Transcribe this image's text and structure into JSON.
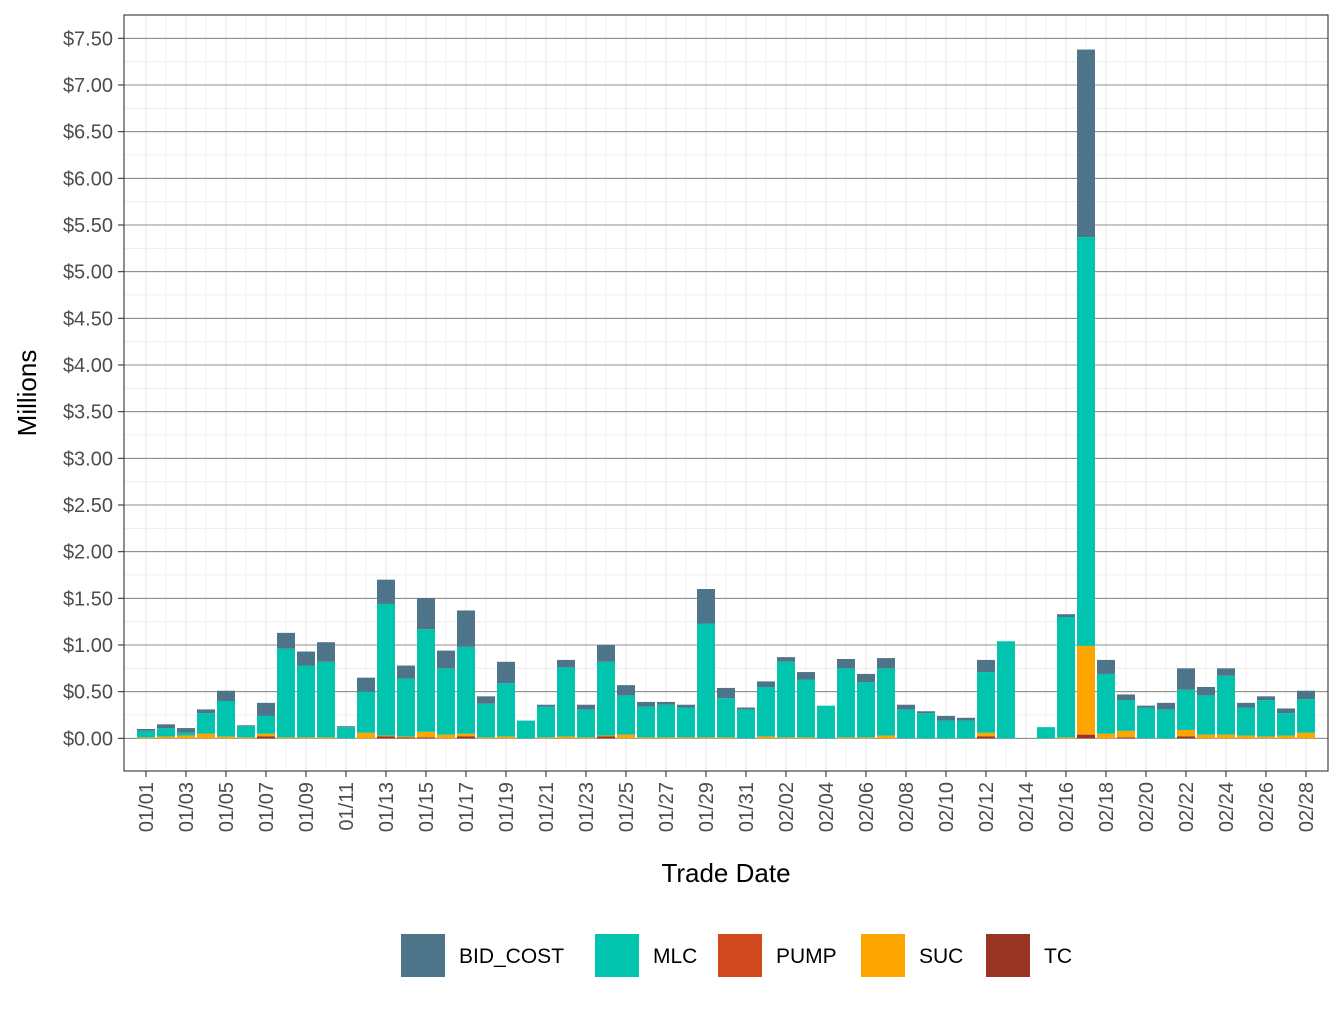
{
  "chart_data": {
    "type": "bar",
    "stacked": true,
    "xlabel": "Trade Date",
    "ylabel": "Millions",
    "ylim": [
      -0.35,
      7.75
    ],
    "y_ticks": [
      0,
      0.5,
      1,
      1.5,
      2,
      2.5,
      3,
      3.5,
      4,
      4.5,
      5,
      5.5,
      6,
      6.5,
      7,
      7.5
    ],
    "y_tick_labels": [
      "$0.00",
      "$0.50",
      "$1.00",
      "$1.50",
      "$2.00",
      "$2.50",
      "$3.00",
      "$3.50",
      "$4.00",
      "$4.50",
      "$5.00",
      "$5.50",
      "$6.00",
      "$6.50",
      "$7.00",
      "$7.50"
    ],
    "grid": true,
    "legend_position": "bottom",
    "x_tick_labels": [
      "01/01",
      "01/03",
      "01/05",
      "01/07",
      "01/09",
      "01/11",
      "01/13",
      "01/15",
      "01/17",
      "01/19",
      "01/21",
      "01/23",
      "01/25",
      "01/27",
      "01/29",
      "01/31",
      "02/02",
      "02/04",
      "02/06",
      "02/08",
      "02/10",
      "02/12",
      "02/14",
      "02/16",
      "02/18",
      "02/20",
      "02/22",
      "02/24",
      "02/26",
      "02/28"
    ],
    "categories": [
      "01/01",
      "01/02",
      "01/03",
      "01/04",
      "01/05",
      "01/06",
      "01/07",
      "01/08",
      "01/09",
      "01/10",
      "01/11",
      "01/12",
      "01/13",
      "01/14",
      "01/15",
      "01/16",
      "01/17",
      "01/18",
      "01/19",
      "01/20",
      "01/21",
      "01/22",
      "01/23",
      "01/24",
      "01/25",
      "01/26",
      "01/27",
      "01/28",
      "01/29",
      "01/30",
      "01/31",
      "02/01",
      "02/02",
      "02/03",
      "02/04",
      "02/05",
      "02/06",
      "02/07",
      "02/08",
      "02/09",
      "02/10",
      "02/11",
      "02/12",
      "02/13",
      "02/14",
      "02/15",
      "02/16",
      "02/17",
      "02/18",
      "02/19",
      "02/20",
      "02/21",
      "02/22",
      "02/23",
      "02/24",
      "02/25",
      "02/26",
      "02/27",
      "02/28"
    ],
    "series": [
      {
        "name": "TC",
        "color": "#993522",
        "values": [
          0,
          0,
          0,
          0,
          0,
          0,
          0.02,
          0,
          0,
          0,
          0,
          0,
          0.02,
          0.01,
          0.01,
          0,
          0.02,
          0,
          0,
          0,
          0,
          0,
          0,
          0.02,
          0,
          0,
          0,
          0,
          0,
          0,
          0,
          0,
          0,
          0,
          0,
          0,
          0,
          0,
          0,
          0,
          0,
          0,
          0.02,
          0,
          0,
          0,
          0,
          0.04,
          0,
          0.01,
          0,
          0,
          0.02,
          0,
          0,
          0,
          0,
          0,
          0
        ]
      },
      {
        "name": "SUC",
        "color": "#FFA500",
        "values": [
          0.01,
          0.02,
          0.03,
          0.05,
          0.02,
          0.01,
          0.03,
          0.01,
          0.01,
          0.01,
          0,
          0.06,
          0.01,
          0.01,
          0.06,
          0.04,
          0.03,
          0.01,
          0.02,
          0,
          0.01,
          0.02,
          0.01,
          0.01,
          0.04,
          0.01,
          0.01,
          0.01,
          0.01,
          0.01,
          0,
          0.02,
          0.01,
          0.01,
          0,
          0.01,
          0.01,
          0.03,
          0,
          0,
          0,
          0,
          0.04,
          0,
          0,
          0,
          0.01,
          0.95,
          0.05,
          0.07,
          0,
          0,
          0.07,
          0.04,
          0.04,
          0.03,
          0.02,
          0.03,
          0.06
        ]
      },
      {
        "name": "PUMP",
        "color": "#D24A1F",
        "values": [
          0,
          0,
          0,
          0,
          0,
          0,
          0,
          0,
          0,
          0,
          0,
          0,
          0,
          0,
          0,
          0,
          0,
          0,
          0,
          0,
          0,
          0,
          0,
          0,
          0,
          0,
          0,
          0,
          0,
          0,
          0,
          0,
          0,
          0,
          0,
          0,
          0,
          0,
          0,
          0,
          0,
          0,
          0,
          0,
          0,
          0,
          0,
          0,
          0,
          0,
          0,
          0,
          0,
          0,
          0,
          0,
          0,
          0,
          0
        ]
      },
      {
        "name": "MLC",
        "color": "#00C4AE",
        "values": [
          0.07,
          0.09,
          0.03,
          0.22,
          0.38,
          0.12,
          0.19,
          0.95,
          0.77,
          0.81,
          0.12,
          0.44,
          1.41,
          0.62,
          1.1,
          0.71,
          0.93,
          0.36,
          0.57,
          0.19,
          0.33,
          0.74,
          0.3,
          0.79,
          0.42,
          0.33,
          0.35,
          0.32,
          1.22,
          0.42,
          0.31,
          0.53,
          0.81,
          0.62,
          0.35,
          0.74,
          0.59,
          0.72,
          0.31,
          0.27,
          0.19,
          0.19,
          0.65,
          1.04,
          0,
          0.12,
          1.29,
          4.38,
          0.64,
          0.33,
          0.33,
          0.31,
          0.43,
          0.42,
          0.63,
          0.3,
          0.39,
          0.24,
          0.36
        ]
      },
      {
        "name": "BID_COST",
        "color": "#4E7489",
        "values": [
          0.02,
          0.04,
          0.05,
          0.04,
          0.11,
          0.01,
          0.14,
          0.17,
          0.15,
          0.21,
          0.01,
          0.15,
          0.26,
          0.14,
          0.33,
          0.19,
          0.39,
          0.08,
          0.23,
          0,
          0.02,
          0.08,
          0.05,
          0.18,
          0.11,
          0.05,
          0.03,
          0.03,
          0.37,
          0.11,
          0.02,
          0.06,
          0.05,
          0.08,
          0,
          0.1,
          0.09,
          0.11,
          0.05,
          0.02,
          0.05,
          0.03,
          0.13,
          0,
          0,
          0,
          0.03,
          2.01,
          0.15,
          0.06,
          0.02,
          0.07,
          0.23,
          0.09,
          0.08,
          0.05,
          0.04,
          0.05,
          0.09
        ]
      }
    ],
    "legend": [
      "BID_COST",
      "MLC",
      "PUMP",
      "SUC",
      "TC"
    ]
  }
}
